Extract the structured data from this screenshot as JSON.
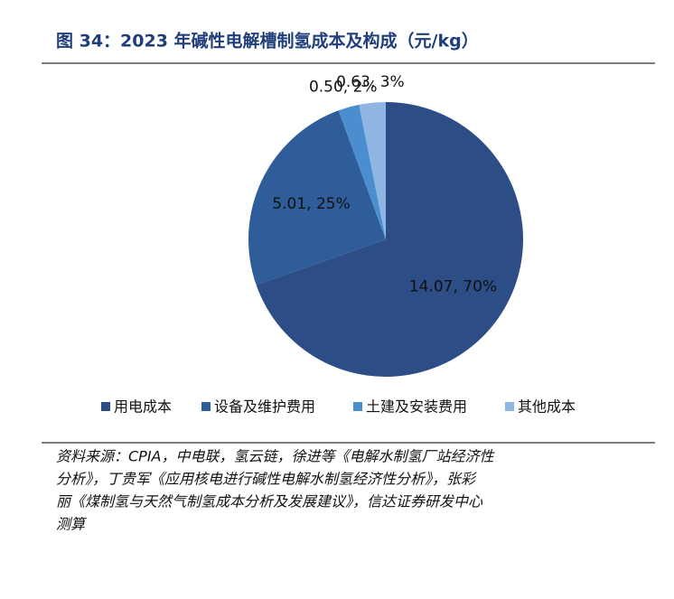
{
  "chart_data": {
    "type": "pie",
    "title": "图 34：2023 年碱性电解槽制氢成本及构成（元/kg）",
    "categories": [
      "用电成本",
      "设备及维护费用",
      "土建及安装费用",
      "其他成本"
    ],
    "values": [
      14.07,
      5.01,
      0.5,
      0.63
    ],
    "value_labels": [
      "14.07, 70%",
      "5.01, 25%",
      "0.50, 2%",
      "0.63, 3%"
    ],
    "colors": [
      "#2c4d86",
      "#2e5d99",
      "#4a8ed0",
      "#8fb6e3"
    ],
    "legend": "bottom",
    "source": [
      "资料来源：CPIA，中电联，氢云链，徐进等《电解水制氢厂站经济性",
      "分析》，丁贵军《应用核电进行碱性电解水制氢经济性分析》，张彩",
      "丽《煤制氢与天然气制氢成本分析及发展建议》，信达证券研发中心",
      "测算"
    ]
  }
}
